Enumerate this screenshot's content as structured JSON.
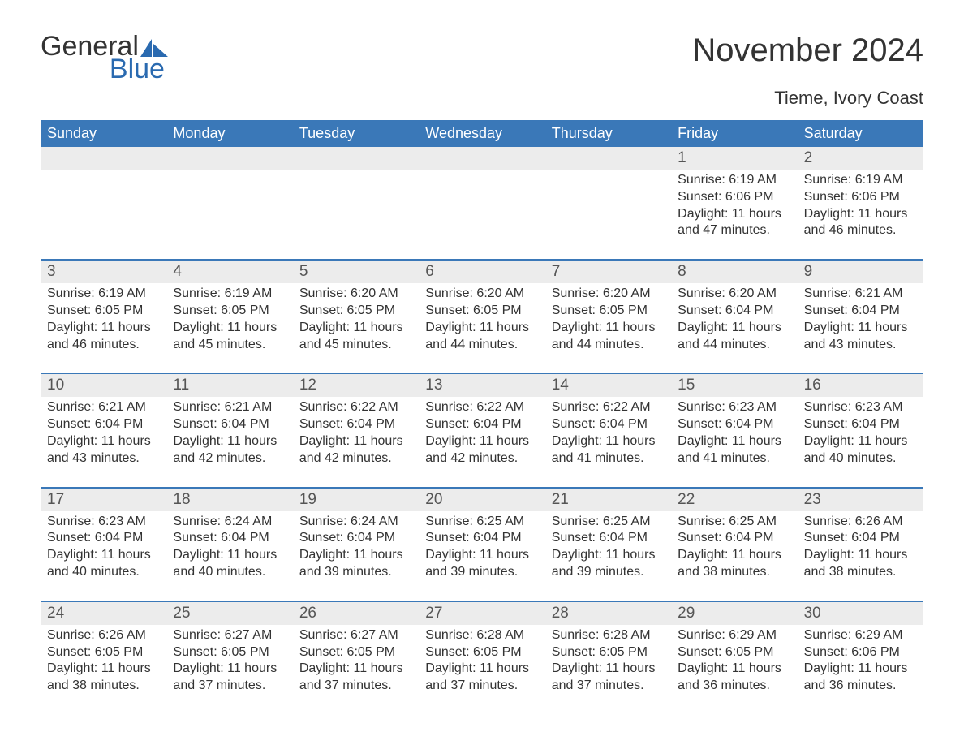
{
  "logo": {
    "text1": "General",
    "text2": "Blue",
    "shape_color": "#2a6ab0"
  },
  "title": "November 2024",
  "subtitle": "Tieme, Ivory Coast",
  "colors": {
    "header_bg": "#3a78b8",
    "header_text": "#ffffff",
    "row_accent": "#3a78b8",
    "daynum_bg": "#ececec",
    "text": "#333333",
    "logo_blue": "#2a6ab0"
  },
  "typography": {
    "title_fontsize": 40,
    "subtitle_fontsize": 22,
    "dow_fontsize": 18,
    "daynum_fontsize": 19,
    "body_fontsize": 16
  },
  "dow": [
    "Sunday",
    "Monday",
    "Tuesday",
    "Wednesday",
    "Thursday",
    "Friday",
    "Saturday"
  ],
  "weeks": [
    [
      null,
      null,
      null,
      null,
      null,
      {
        "n": "1",
        "sunrise": "Sunrise: 6:19 AM",
        "sunset": "Sunset: 6:06 PM",
        "daylight": "Daylight: 11 hours and 47 minutes."
      },
      {
        "n": "2",
        "sunrise": "Sunrise: 6:19 AM",
        "sunset": "Sunset: 6:06 PM",
        "daylight": "Daylight: 11 hours and 46 minutes."
      }
    ],
    [
      {
        "n": "3",
        "sunrise": "Sunrise: 6:19 AM",
        "sunset": "Sunset: 6:05 PM",
        "daylight": "Daylight: 11 hours and 46 minutes."
      },
      {
        "n": "4",
        "sunrise": "Sunrise: 6:19 AM",
        "sunset": "Sunset: 6:05 PM",
        "daylight": "Daylight: 11 hours and 45 minutes."
      },
      {
        "n": "5",
        "sunrise": "Sunrise: 6:20 AM",
        "sunset": "Sunset: 6:05 PM",
        "daylight": "Daylight: 11 hours and 45 minutes."
      },
      {
        "n": "6",
        "sunrise": "Sunrise: 6:20 AM",
        "sunset": "Sunset: 6:05 PM",
        "daylight": "Daylight: 11 hours and 44 minutes."
      },
      {
        "n": "7",
        "sunrise": "Sunrise: 6:20 AM",
        "sunset": "Sunset: 6:05 PM",
        "daylight": "Daylight: 11 hours and 44 minutes."
      },
      {
        "n": "8",
        "sunrise": "Sunrise: 6:20 AM",
        "sunset": "Sunset: 6:04 PM",
        "daylight": "Daylight: 11 hours and 44 minutes."
      },
      {
        "n": "9",
        "sunrise": "Sunrise: 6:21 AM",
        "sunset": "Sunset: 6:04 PM",
        "daylight": "Daylight: 11 hours and 43 minutes."
      }
    ],
    [
      {
        "n": "10",
        "sunrise": "Sunrise: 6:21 AM",
        "sunset": "Sunset: 6:04 PM",
        "daylight": "Daylight: 11 hours and 43 minutes."
      },
      {
        "n": "11",
        "sunrise": "Sunrise: 6:21 AM",
        "sunset": "Sunset: 6:04 PM",
        "daylight": "Daylight: 11 hours and 42 minutes."
      },
      {
        "n": "12",
        "sunrise": "Sunrise: 6:22 AM",
        "sunset": "Sunset: 6:04 PM",
        "daylight": "Daylight: 11 hours and 42 minutes."
      },
      {
        "n": "13",
        "sunrise": "Sunrise: 6:22 AM",
        "sunset": "Sunset: 6:04 PM",
        "daylight": "Daylight: 11 hours and 42 minutes."
      },
      {
        "n": "14",
        "sunrise": "Sunrise: 6:22 AM",
        "sunset": "Sunset: 6:04 PM",
        "daylight": "Daylight: 11 hours and 41 minutes."
      },
      {
        "n": "15",
        "sunrise": "Sunrise: 6:23 AM",
        "sunset": "Sunset: 6:04 PM",
        "daylight": "Daylight: 11 hours and 41 minutes."
      },
      {
        "n": "16",
        "sunrise": "Sunrise: 6:23 AM",
        "sunset": "Sunset: 6:04 PM",
        "daylight": "Daylight: 11 hours and 40 minutes."
      }
    ],
    [
      {
        "n": "17",
        "sunrise": "Sunrise: 6:23 AM",
        "sunset": "Sunset: 6:04 PM",
        "daylight": "Daylight: 11 hours and 40 minutes."
      },
      {
        "n": "18",
        "sunrise": "Sunrise: 6:24 AM",
        "sunset": "Sunset: 6:04 PM",
        "daylight": "Daylight: 11 hours and 40 minutes."
      },
      {
        "n": "19",
        "sunrise": "Sunrise: 6:24 AM",
        "sunset": "Sunset: 6:04 PM",
        "daylight": "Daylight: 11 hours and 39 minutes."
      },
      {
        "n": "20",
        "sunrise": "Sunrise: 6:25 AM",
        "sunset": "Sunset: 6:04 PM",
        "daylight": "Daylight: 11 hours and 39 minutes."
      },
      {
        "n": "21",
        "sunrise": "Sunrise: 6:25 AM",
        "sunset": "Sunset: 6:04 PM",
        "daylight": "Daylight: 11 hours and 39 minutes."
      },
      {
        "n": "22",
        "sunrise": "Sunrise: 6:25 AM",
        "sunset": "Sunset: 6:04 PM",
        "daylight": "Daylight: 11 hours and 38 minutes."
      },
      {
        "n": "23",
        "sunrise": "Sunrise: 6:26 AM",
        "sunset": "Sunset: 6:04 PM",
        "daylight": "Daylight: 11 hours and 38 minutes."
      }
    ],
    [
      {
        "n": "24",
        "sunrise": "Sunrise: 6:26 AM",
        "sunset": "Sunset: 6:05 PM",
        "daylight": "Daylight: 11 hours and 38 minutes."
      },
      {
        "n": "25",
        "sunrise": "Sunrise: 6:27 AM",
        "sunset": "Sunset: 6:05 PM",
        "daylight": "Daylight: 11 hours and 37 minutes."
      },
      {
        "n": "26",
        "sunrise": "Sunrise: 6:27 AM",
        "sunset": "Sunset: 6:05 PM",
        "daylight": "Daylight: 11 hours and 37 minutes."
      },
      {
        "n": "27",
        "sunrise": "Sunrise: 6:28 AM",
        "sunset": "Sunset: 6:05 PM",
        "daylight": "Daylight: 11 hours and 37 minutes."
      },
      {
        "n": "28",
        "sunrise": "Sunrise: 6:28 AM",
        "sunset": "Sunset: 6:05 PM",
        "daylight": "Daylight: 11 hours and 37 minutes."
      },
      {
        "n": "29",
        "sunrise": "Sunrise: 6:29 AM",
        "sunset": "Sunset: 6:05 PM",
        "daylight": "Daylight: 11 hours and 36 minutes."
      },
      {
        "n": "30",
        "sunrise": "Sunrise: 6:29 AM",
        "sunset": "Sunset: 6:06 PM",
        "daylight": "Daylight: 11 hours and 36 minutes."
      }
    ]
  ]
}
